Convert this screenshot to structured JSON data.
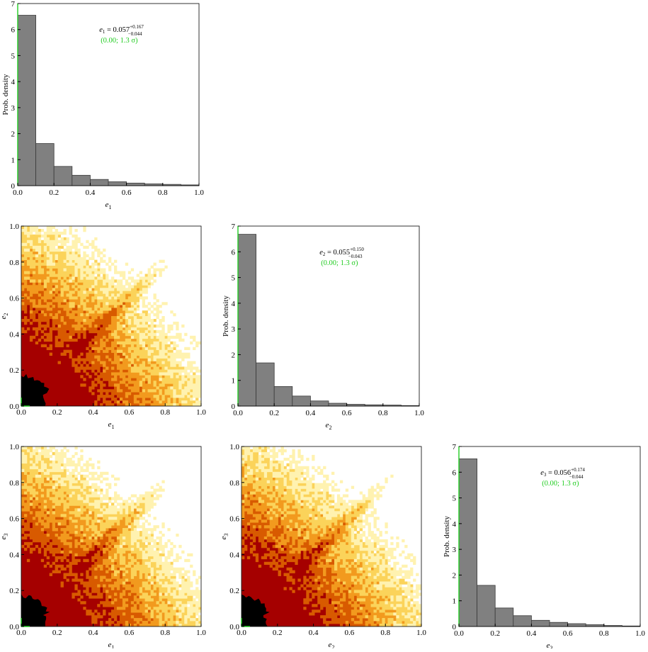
{
  "colors": {
    "bar_fill": "#808080",
    "bar_stroke": "#3a3a3a",
    "axis": "#000000",
    "highlight_axis": "#22cc22",
    "annotation_secondary": "#22cc22",
    "density_levels": [
      "#000000",
      "#a50000",
      "#d85a00",
      "#f29a1e",
      "#fbd35a",
      "#fff2b0",
      "#ffffff"
    ]
  },
  "chart_data": [
    {
      "id": "hist-e1",
      "type": "bar",
      "xlabel_main": "e",
      "xlabel_sub": "1",
      "ylabel": "Prob. density",
      "xlim": [
        0,
        1
      ],
      "ylim": [
        0,
        7
      ],
      "xticks": [
        "0.0",
        "0.2",
        "0.4",
        "0.6",
        "0.8",
        "1.0"
      ],
      "yticks": [
        "0",
        "1",
        "2",
        "3",
        "4",
        "5",
        "6",
        "7"
      ],
      "bin_edges": [
        0,
        0.1,
        0.2,
        0.3,
        0.4,
        0.5,
        0.6,
        0.7,
        0.8,
        0.9,
        1.0
      ],
      "values": [
        6.55,
        1.62,
        0.74,
        0.4,
        0.24,
        0.15,
        0.1,
        0.07,
        0.05,
        0.03
      ],
      "annotation": {
        "lhs_var": "e",
        "lhs_sub": "1",
        "value": "= 0.057",
        "upper": "+0.167",
        "lower": "−0.044",
        "secondary": "(0.00; 1.3 σ)"
      }
    },
    {
      "id": "hist-e2",
      "type": "bar",
      "xlabel_main": "e",
      "xlabel_sub": "2",
      "ylabel": "Prob. density",
      "xlim": [
        0,
        1
      ],
      "ylim": [
        0,
        7
      ],
      "xticks": [
        "0.0",
        "0.2",
        "0.4",
        "0.6",
        "0.8",
        "1.0"
      ],
      "yticks": [
        "0",
        "1",
        "2",
        "3",
        "4",
        "5",
        "6",
        "7"
      ],
      "bin_edges": [
        0,
        0.1,
        0.2,
        0.3,
        0.4,
        0.5,
        0.6,
        0.7,
        0.8,
        0.9,
        1.0
      ],
      "values": [
        6.68,
        1.68,
        0.76,
        0.39,
        0.2,
        0.11,
        0.07,
        0.05,
        0.04,
        0.02
      ],
      "annotation": {
        "lhs_var": "e",
        "lhs_sub": "2",
        "value": "= 0.055",
        "upper": "+0.150",
        "lower": "−0.043",
        "secondary": "(0.00; 1.3 σ)"
      }
    },
    {
      "id": "hist-e3",
      "type": "bar",
      "xlabel_main": "e",
      "xlabel_sub": "3",
      "ylabel": "Prob. density",
      "xlim": [
        0,
        1
      ],
      "ylim": [
        0,
        7
      ],
      "xticks": [
        "0.0",
        "0.2",
        "0.4",
        "0.6",
        "0.8",
        "1.0"
      ],
      "yticks": [
        "0",
        "1",
        "2",
        "3",
        "4",
        "5",
        "6",
        "7"
      ],
      "bin_edges": [
        0,
        0.1,
        0.2,
        0.3,
        0.4,
        0.5,
        0.6,
        0.7,
        0.8,
        0.9,
        1.0
      ],
      "values": [
        6.52,
        1.6,
        0.72,
        0.42,
        0.24,
        0.16,
        0.11,
        0.07,
        0.04,
        0.02
      ],
      "annotation": {
        "lhs_var": "e",
        "lhs_sub": "3",
        "value": "= 0.056",
        "upper": "+0.174",
        "lower": "−0.044",
        "secondary": "(0.00; 1.3 σ)"
      }
    },
    {
      "id": "density-e1-e2",
      "type": "heatmap",
      "xlabel_main": "e",
      "xlabel_sub": "1",
      "ylabel_main": "e",
      "ylabel_sub": "2",
      "xlim": [
        0,
        1
      ],
      "ylim": [
        0,
        1
      ],
      "xticks": [
        "0.0",
        "0.2",
        "0.4",
        "0.6",
        "0.8",
        "1.0"
      ],
      "yticks": [
        "0.0",
        "0.2",
        "0.4",
        "0.6",
        "0.8",
        "1.0"
      ],
      "core_radius": 0.2,
      "ridge": true
    },
    {
      "id": "density-e1-e3",
      "type": "heatmap",
      "xlabel_main": "e",
      "xlabel_sub": "1",
      "ylabel_main": "e",
      "ylabel_sub": "3",
      "xlim": [
        0,
        1
      ],
      "ylim": [
        0,
        1
      ],
      "xticks": [
        "0.0",
        "0.2",
        "0.4",
        "0.6",
        "0.8",
        "1.0"
      ],
      "yticks": [
        "0.0",
        "0.2",
        "0.4",
        "0.6",
        "0.8",
        "1.0"
      ],
      "core_radius": 0.2,
      "ridge": true
    },
    {
      "id": "density-e2-e3",
      "type": "heatmap",
      "xlabel_main": "e",
      "xlabel_sub": "2",
      "ylabel_main": "e",
      "ylabel_sub": "3",
      "xlim": [
        0,
        1
      ],
      "ylim": [
        0,
        1
      ],
      "xticks": [
        "0.0",
        "0.2",
        "0.4",
        "0.6",
        "0.8",
        "1.0"
      ],
      "yticks": [
        "0.0",
        "0.2",
        "0.4",
        "0.6",
        "0.8",
        "1.0"
      ],
      "core_radius": 0.2,
      "ridge": true
    }
  ]
}
